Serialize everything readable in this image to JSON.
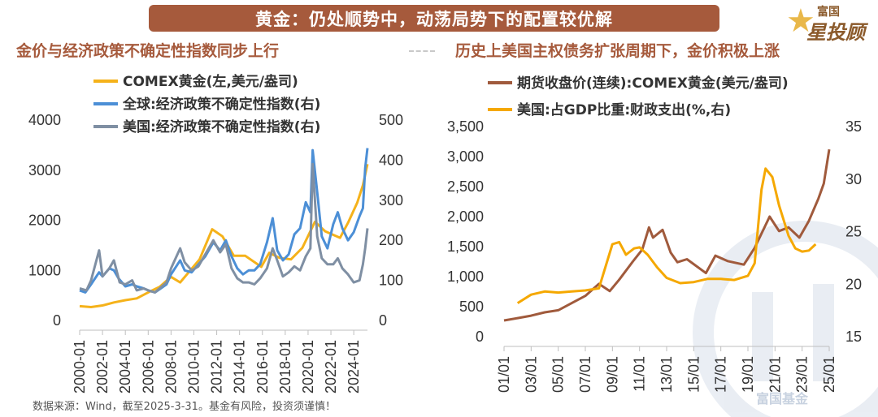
{
  "header": {
    "title": "黄金：仍处顺势中，动荡局势下的配置较优解",
    "logo_small": "富国",
    "logo_big": "星投顾"
  },
  "footer": {
    "source": "数据来源：Wind，截至2025-3-31。基金有风险，投资须谨慎！",
    "watermark": "富国基金"
  },
  "chart_data": [
    {
      "type": "line",
      "title": "金价与经济政策不确定性指数同步上行",
      "x_ticks": [
        "2000-01",
        "2002-01",
        "2004-01",
        "2006-01",
        "2008-01",
        "2010-01",
        "2012-01",
        "2014-01",
        "2016-01",
        "2018-01",
        "2020-01",
        "2022-01",
        "2024-01"
      ],
      "x_range": [
        2000.0,
        2025.2
      ],
      "y_left": {
        "range": [
          0,
          4000
        ],
        "ticks": [
          "0",
          "1000",
          "2000",
          "3000",
          "4000"
        ]
      },
      "y_right": {
        "range": [
          0,
          500
        ],
        "ticks": [
          "0",
          "100",
          "200",
          "300",
          "400",
          "500"
        ]
      },
      "legend_position": "top",
      "grid": false,
      "series": [
        {
          "name": "COMEX黄金(左,美元/盎司)",
          "axis": "left",
          "color": "#f5b21a",
          "points": [
            [
              2000.0,
              285
            ],
            [
              2001.0,
              268
            ],
            [
              2002.0,
              300
            ],
            [
              2003.0,
              360
            ],
            [
              2004.0,
              405
            ],
            [
              2005.0,
              440
            ],
            [
              2006.0,
              560
            ],
            [
              2007.0,
              670
            ],
            [
              2008.0,
              870
            ],
            [
              2008.8,
              760
            ],
            [
              2009.5,
              950
            ],
            [
              2010.5,
              1220
            ],
            [
              2011.6,
              1820
            ],
            [
              2012.5,
              1680
            ],
            [
              2013.5,
              1290
            ],
            [
              2014.5,
              1290
            ],
            [
              2015.9,
              1070
            ],
            [
              2016.6,
              1350
            ],
            [
              2017.5,
              1250
            ],
            [
              2018.5,
              1220
            ],
            [
              2019.5,
              1450
            ],
            [
              2020.6,
              1970
            ],
            [
              2021.5,
              1780
            ],
            [
              2022.8,
              1650
            ],
            [
              2023.5,
              1950
            ],
            [
              2024.3,
              2350
            ],
            [
              2024.8,
              2700
            ],
            [
              2025.2,
              3120
            ]
          ]
        },
        {
          "name": "全球:经济政策不确定性指数(右)",
          "axis": "right",
          "color": "#4c8fd6",
          "points": [
            [
              2000.0,
              75
            ],
            [
              2000.5,
              70
            ],
            [
              2001.0,
              90
            ],
            [
              2001.7,
              120
            ],
            [
              2002.0,
              110
            ],
            [
              2002.6,
              130
            ],
            [
              2003.0,
              125
            ],
            [
              2003.4,
              105
            ],
            [
              2004.0,
              85
            ],
            [
              2004.6,
              90
            ],
            [
              2005.0,
              85
            ],
            [
              2005.6,
              80
            ],
            [
              2006.0,
              75
            ],
            [
              2006.6,
              70
            ],
            [
              2007.0,
              78
            ],
            [
              2007.6,
              90
            ],
            [
              2008.0,
              115
            ],
            [
              2008.8,
              150
            ],
            [
              2009.2,
              125
            ],
            [
              2009.8,
              120
            ],
            [
              2010.4,
              140
            ],
            [
              2011.0,
              160
            ],
            [
              2011.7,
              195
            ],
            [
              2012.3,
              175
            ],
            [
              2012.8,
              200
            ],
            [
              2013.3,
              160
            ],
            [
              2013.8,
              130
            ],
            [
              2014.3,
              115
            ],
            [
              2014.8,
              125
            ],
            [
              2015.3,
              125
            ],
            [
              2015.8,
              140
            ],
            [
              2016.4,
              195
            ],
            [
              2016.9,
              255
            ],
            [
              2017.3,
              175
            ],
            [
              2017.8,
              150
            ],
            [
              2018.3,
              165
            ],
            [
              2018.8,
              215
            ],
            [
              2019.3,
              230
            ],
            [
              2019.8,
              295
            ],
            [
              2020.2,
              270
            ],
            [
              2020.4,
              425
            ],
            [
              2020.8,
              320
            ],
            [
              2021.2,
              210
            ],
            [
              2021.7,
              180
            ],
            [
              2022.2,
              240
            ],
            [
              2022.6,
              270
            ],
            [
              2023.0,
              230
            ],
            [
              2023.5,
              200
            ],
            [
              2024.0,
              220
            ],
            [
              2024.5,
              260
            ],
            [
              2024.8,
              280
            ],
            [
              2025.0,
              380
            ],
            [
              2025.2,
              430
            ]
          ]
        },
        {
          "name": "美国:经济政策不确定性指数(右)",
          "axis": "right",
          "color": "#7f8fa3",
          "points": [
            [
              2000.0,
              80
            ],
            [
              2000.6,
              75
            ],
            [
              2001.0,
              100
            ],
            [
              2001.7,
              175
            ],
            [
              2002.0,
              110
            ],
            [
              2002.6,
              130
            ],
            [
              2003.0,
              150
            ],
            [
              2003.5,
              95
            ],
            [
              2004.0,
              90
            ],
            [
              2004.6,
              100
            ],
            [
              2005.0,
              75
            ],
            [
              2005.6,
              80
            ],
            [
              2006.0,
              75
            ],
            [
              2006.6,
              70
            ],
            [
              2007.0,
              80
            ],
            [
              2007.6,
              95
            ],
            [
              2008.0,
              130
            ],
            [
              2008.8,
              180
            ],
            [
              2009.2,
              145
            ],
            [
              2009.8,
              125
            ],
            [
              2010.4,
              135
            ],
            [
              2010.8,
              155
            ],
            [
              2011.7,
              200
            ],
            [
              2012.3,
              170
            ],
            [
              2012.8,
              190
            ],
            [
              2013.3,
              130
            ],
            [
              2013.8,
              105
            ],
            [
              2014.3,
              95
            ],
            [
              2014.8,
              95
            ],
            [
              2015.3,
              90
            ],
            [
              2015.8,
              105
            ],
            [
              2016.4,
              130
            ],
            [
              2016.9,
              180
            ],
            [
              2017.3,
              150
            ],
            [
              2017.8,
              110
            ],
            [
              2018.3,
              120
            ],
            [
              2018.8,
              135
            ],
            [
              2019.3,
              125
            ],
            [
              2019.8,
              160
            ],
            [
              2020.2,
              180
            ],
            [
              2020.4,
              390
            ],
            [
              2020.8,
              210
            ],
            [
              2021.2,
              155
            ],
            [
              2021.7,
              140
            ],
            [
              2022.2,
              140
            ],
            [
              2022.6,
              155
            ],
            [
              2023.0,
              130
            ],
            [
              2023.5,
              115
            ],
            [
              2024.0,
              95
            ],
            [
              2024.5,
              100
            ],
            [
              2024.8,
              140
            ],
            [
              2025.0,
              180
            ],
            [
              2025.2,
              230
            ]
          ]
        }
      ]
    },
    {
      "type": "line",
      "title": "历史上美国主权债务扩张周期下，金价积极上涨",
      "x_ticks": [
        "01/01",
        "03/01",
        "05/01",
        "07/01",
        "09/01",
        "11/01",
        "13/01",
        "15/01",
        "17/01",
        "19/01",
        "21/01",
        "23/01",
        "25/01"
      ],
      "x_range": [
        2001.0,
        2025.0
      ],
      "y_left": {
        "range": [
          0,
          3500
        ],
        "ticks": [
          "0",
          "500",
          "1,000",
          "1,500",
          "2,000",
          "2,500",
          "3,000",
          "3,500"
        ]
      },
      "y_right": {
        "range": [
          15,
          35
        ],
        "ticks": [
          "15",
          "20",
          "25",
          "30",
          "35"
        ]
      },
      "legend_position": "top",
      "grid": false,
      "series": [
        {
          "name": "期货收盘价(连续):COMEX黄金(美元/盎司)",
          "axis": "left",
          "color": "#a05a3c",
          "points": [
            [
              2001.0,
              270
            ],
            [
              2002.0,
              310
            ],
            [
              2003.0,
              350
            ],
            [
              2004.0,
              405
            ],
            [
              2005.0,
              440
            ],
            [
              2006.0,
              560
            ],
            [
              2007.0,
              680
            ],
            [
              2008.0,
              880
            ],
            [
              2008.8,
              760
            ],
            [
              2009.5,
              950
            ],
            [
              2010.5,
              1250
            ],
            [
              2011.2,
              1450
            ],
            [
              2011.7,
              1820
            ],
            [
              2012.0,
              1650
            ],
            [
              2012.7,
              1780
            ],
            [
              2013.3,
              1400
            ],
            [
              2013.8,
              1240
            ],
            [
              2014.5,
              1290
            ],
            [
              2015.9,
              1060
            ],
            [
              2016.6,
              1350
            ],
            [
              2017.5,
              1260
            ],
            [
              2018.7,
              1200
            ],
            [
              2019.5,
              1480
            ],
            [
              2020.6,
              2000
            ],
            [
              2021.3,
              1760
            ],
            [
              2022.0,
              1820
            ],
            [
              2022.8,
              1650
            ],
            [
              2023.5,
              1930
            ],
            [
              2024.2,
              2300
            ],
            [
              2024.6,
              2550
            ],
            [
              2025.0,
              3120
            ]
          ]
        },
        {
          "name": "美国:占GDP比重:财政支出(%,右)",
          "axis": "right",
          "color": "#f5a800",
          "points": [
            [
              2002.0,
              18.2
            ],
            [
              2003.0,
              19.0
            ],
            [
              2004.0,
              19.3
            ],
            [
              2005.0,
              19.2
            ],
            [
              2006.0,
              19.3
            ],
            [
              2007.0,
              19.4
            ],
            [
              2008.0,
              19.6
            ],
            [
              2009.0,
              23.8
            ],
            [
              2009.5,
              24.0
            ],
            [
              2010.0,
              22.8
            ],
            [
              2010.6,
              23.4
            ],
            [
              2011.0,
              23.5
            ],
            [
              2011.6,
              22.8
            ],
            [
              2012.3,
              21.6
            ],
            [
              2013.0,
              20.6
            ],
            [
              2014.0,
              20.1
            ],
            [
              2015.0,
              20.2
            ],
            [
              2016.0,
              20.5
            ],
            [
              2017.0,
              20.5
            ],
            [
              2018.0,
              20.4
            ],
            [
              2019.0,
              20.8
            ],
            [
              2019.5,
              22.0
            ],
            [
              2020.0,
              29.0
            ],
            [
              2020.3,
              31.0
            ],
            [
              2020.8,
              30.2
            ],
            [
              2021.3,
              27.5
            ],
            [
              2022.0,
              24.6
            ],
            [
              2022.5,
              23.4
            ],
            [
              2023.0,
              23.1
            ],
            [
              2023.5,
              23.2
            ],
            [
              2024.0,
              23.8
            ]
          ]
        }
      ]
    }
  ]
}
